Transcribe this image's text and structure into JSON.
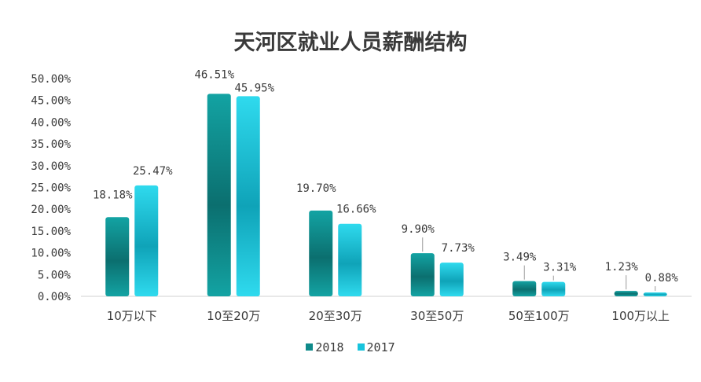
{
  "chart_data": {
    "type": "bar",
    "title": "天河区就业人员薪酬结构",
    "categories": [
      "10万以下",
      "10至20万",
      "20至30万",
      "30至50万",
      "50至100万",
      "100万以上"
    ],
    "series": [
      {
        "name": "2018",
        "values": [
          18.18,
          46.51,
          19.7,
          9.9,
          3.49,
          1.23
        ],
        "color": "#0f8a8a"
      },
      {
        "name": "2017",
        "values": [
          25.47,
          45.95,
          16.66,
          7.73,
          3.31,
          0.88
        ],
        "color": "#18c4dd"
      }
    ],
    "value_labels": [
      [
        "18.18%",
        "46.51%",
        "19.70%",
        "9.90%",
        "3.49%",
        "1.23%"
      ],
      [
        "25.47%",
        "45.95%",
        "16.66%",
        "7.73%",
        "3.31%",
        "0.88%"
      ]
    ],
    "y_ticks": [
      "0.00%",
      "5.00%",
      "10.00%",
      "15.00%",
      "20.00%",
      "25.00%",
      "30.00%",
      "35.00%",
      "40.00%",
      "45.00%",
      "50.00%"
    ],
    "ylim": [
      0,
      50
    ],
    "y_step": 5,
    "grid": false,
    "legend_position": "bottom"
  }
}
